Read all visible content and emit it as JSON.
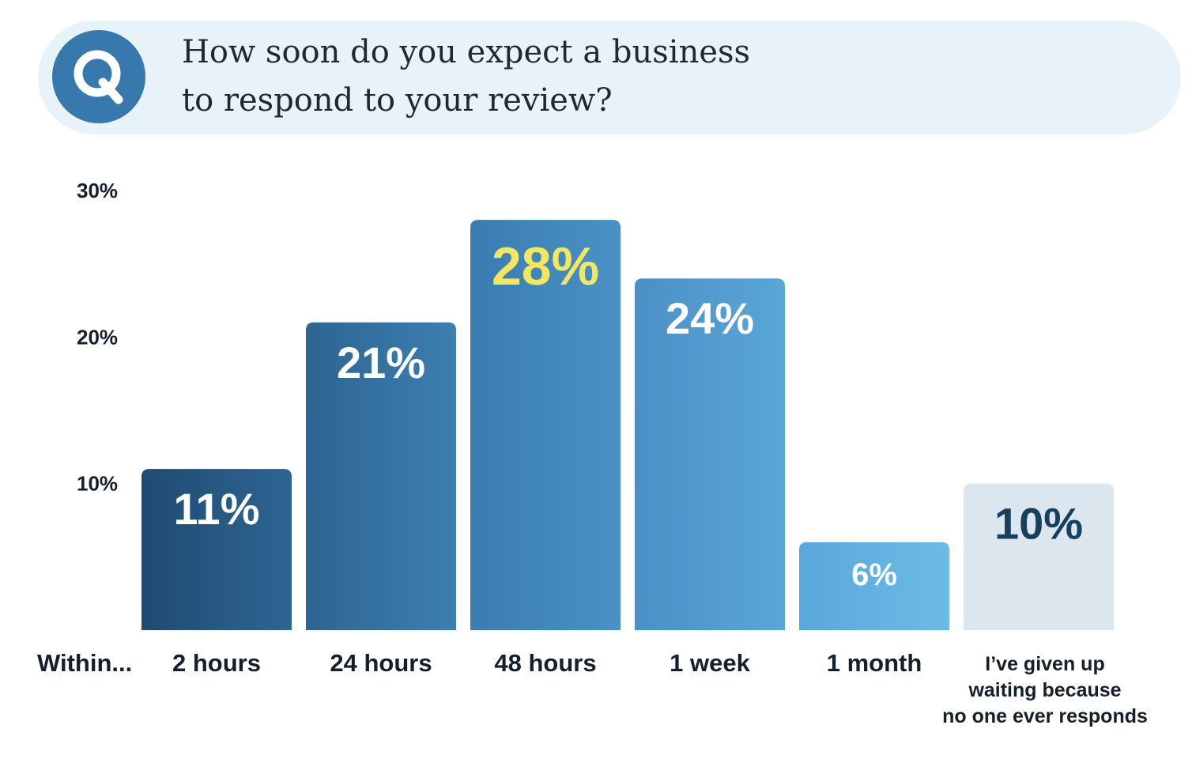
{
  "question": {
    "line1": "How soon do you expect a business",
    "line2": "to respond to your review?"
  },
  "colors": {
    "banner": "#e8f2f9",
    "icon_circle": "#3879ad",
    "highlight_label": "#f3e760",
    "dark_label": "#17405f"
  },
  "chart_data": {
    "type": "bar",
    "axis_prefix": "Within...",
    "categories": [
      "2 hours",
      "24 hours",
      "48 hours",
      "1 week",
      "1 month",
      "I've given up waiting because no one ever responds"
    ],
    "category_lines": [
      [
        "2 hours"
      ],
      [
        "24 hours"
      ],
      [
        "48 hours"
      ],
      [
        "1 week"
      ],
      [
        "1 month"
      ],
      [
        "I’ve given up",
        "waiting because",
        "no one ever responds"
      ]
    ],
    "values": [
      11,
      21,
      28,
      24,
      6,
      10
    ],
    "data_labels": [
      "11%",
      "21%",
      "28%",
      "24%",
      "6%",
      "10%"
    ],
    "bar_colors": [
      [
        "#1f4b72",
        "#2e6592"
      ],
      [
        "#2e6592",
        "#3c7fb0"
      ],
      [
        "#3a7db0",
        "#4a91c5"
      ],
      [
        "#4a90c6",
        "#5aa6d8"
      ],
      [
        "#5aa8dc",
        "#6bbbe6"
      ],
      [
        "#dce6ee",
        "#dce6ee"
      ]
    ],
    "label_colors": [
      "#ffffff",
      "#ffffff",
      "#f3e760",
      "#ffffff",
      "#ffffff",
      "#17405f"
    ],
    "yticks": [
      {
        "value": 10,
        "label": "10%"
      },
      {
        "value": 20,
        "label": "20%"
      },
      {
        "value": 30,
        "label": "30%"
      }
    ],
    "ylim": [
      0,
      30
    ],
    "grid": false,
    "legend": "none"
  }
}
